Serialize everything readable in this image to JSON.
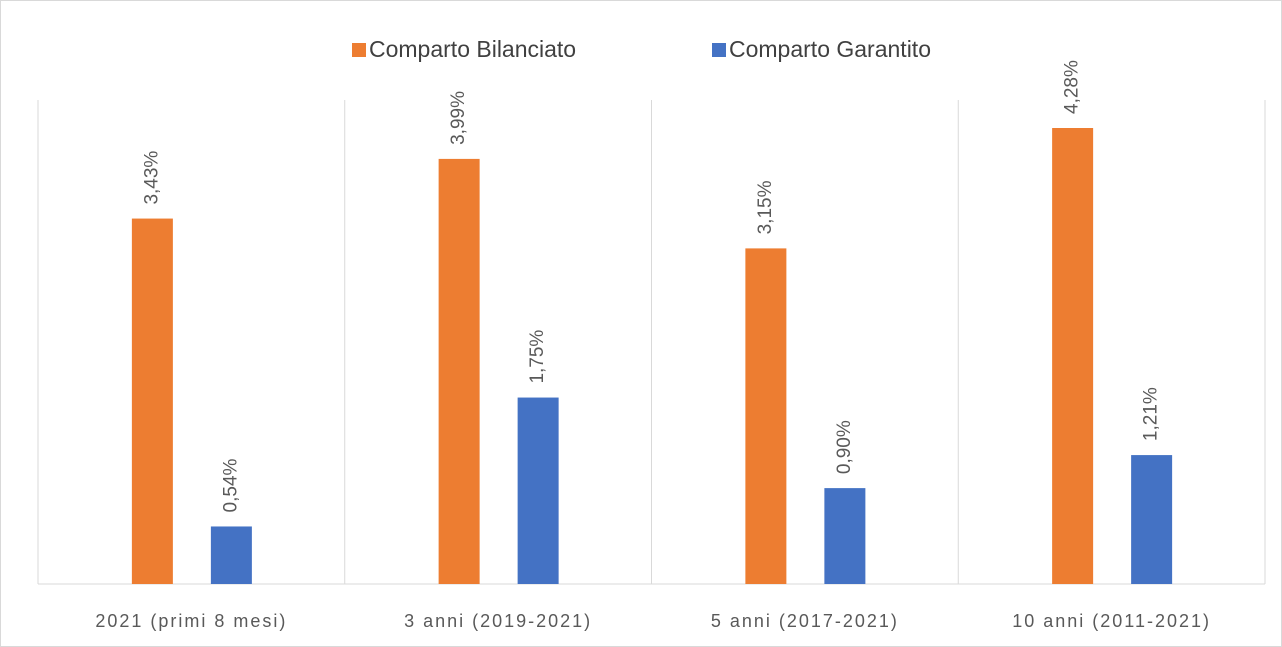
{
  "chart_data": {
    "type": "bar",
    "categories": [
      "2021 (primi 8 mesi)",
      "3 anni (2019-2021)",
      "5 anni (2017-2021)",
      "10 anni (2011-2021)"
    ],
    "series": [
      {
        "name": "Comparto Bilanciato",
        "color": "#ed7d31",
        "values": [
          3.43,
          3.99,
          3.15,
          4.28
        ],
        "value_labels": [
          "3,43%",
          "3,99%",
          "3,15%",
          "4,28%"
        ]
      },
      {
        "name": "Comparto Garantito",
        "color": "#4472c4",
        "values": [
          0.54,
          1.75,
          0.9,
          1.21
        ],
        "value_labels": [
          "0,54%",
          "1,75%",
          "0,90%",
          "1,21%"
        ]
      }
    ],
    "legend": "top"
  }
}
